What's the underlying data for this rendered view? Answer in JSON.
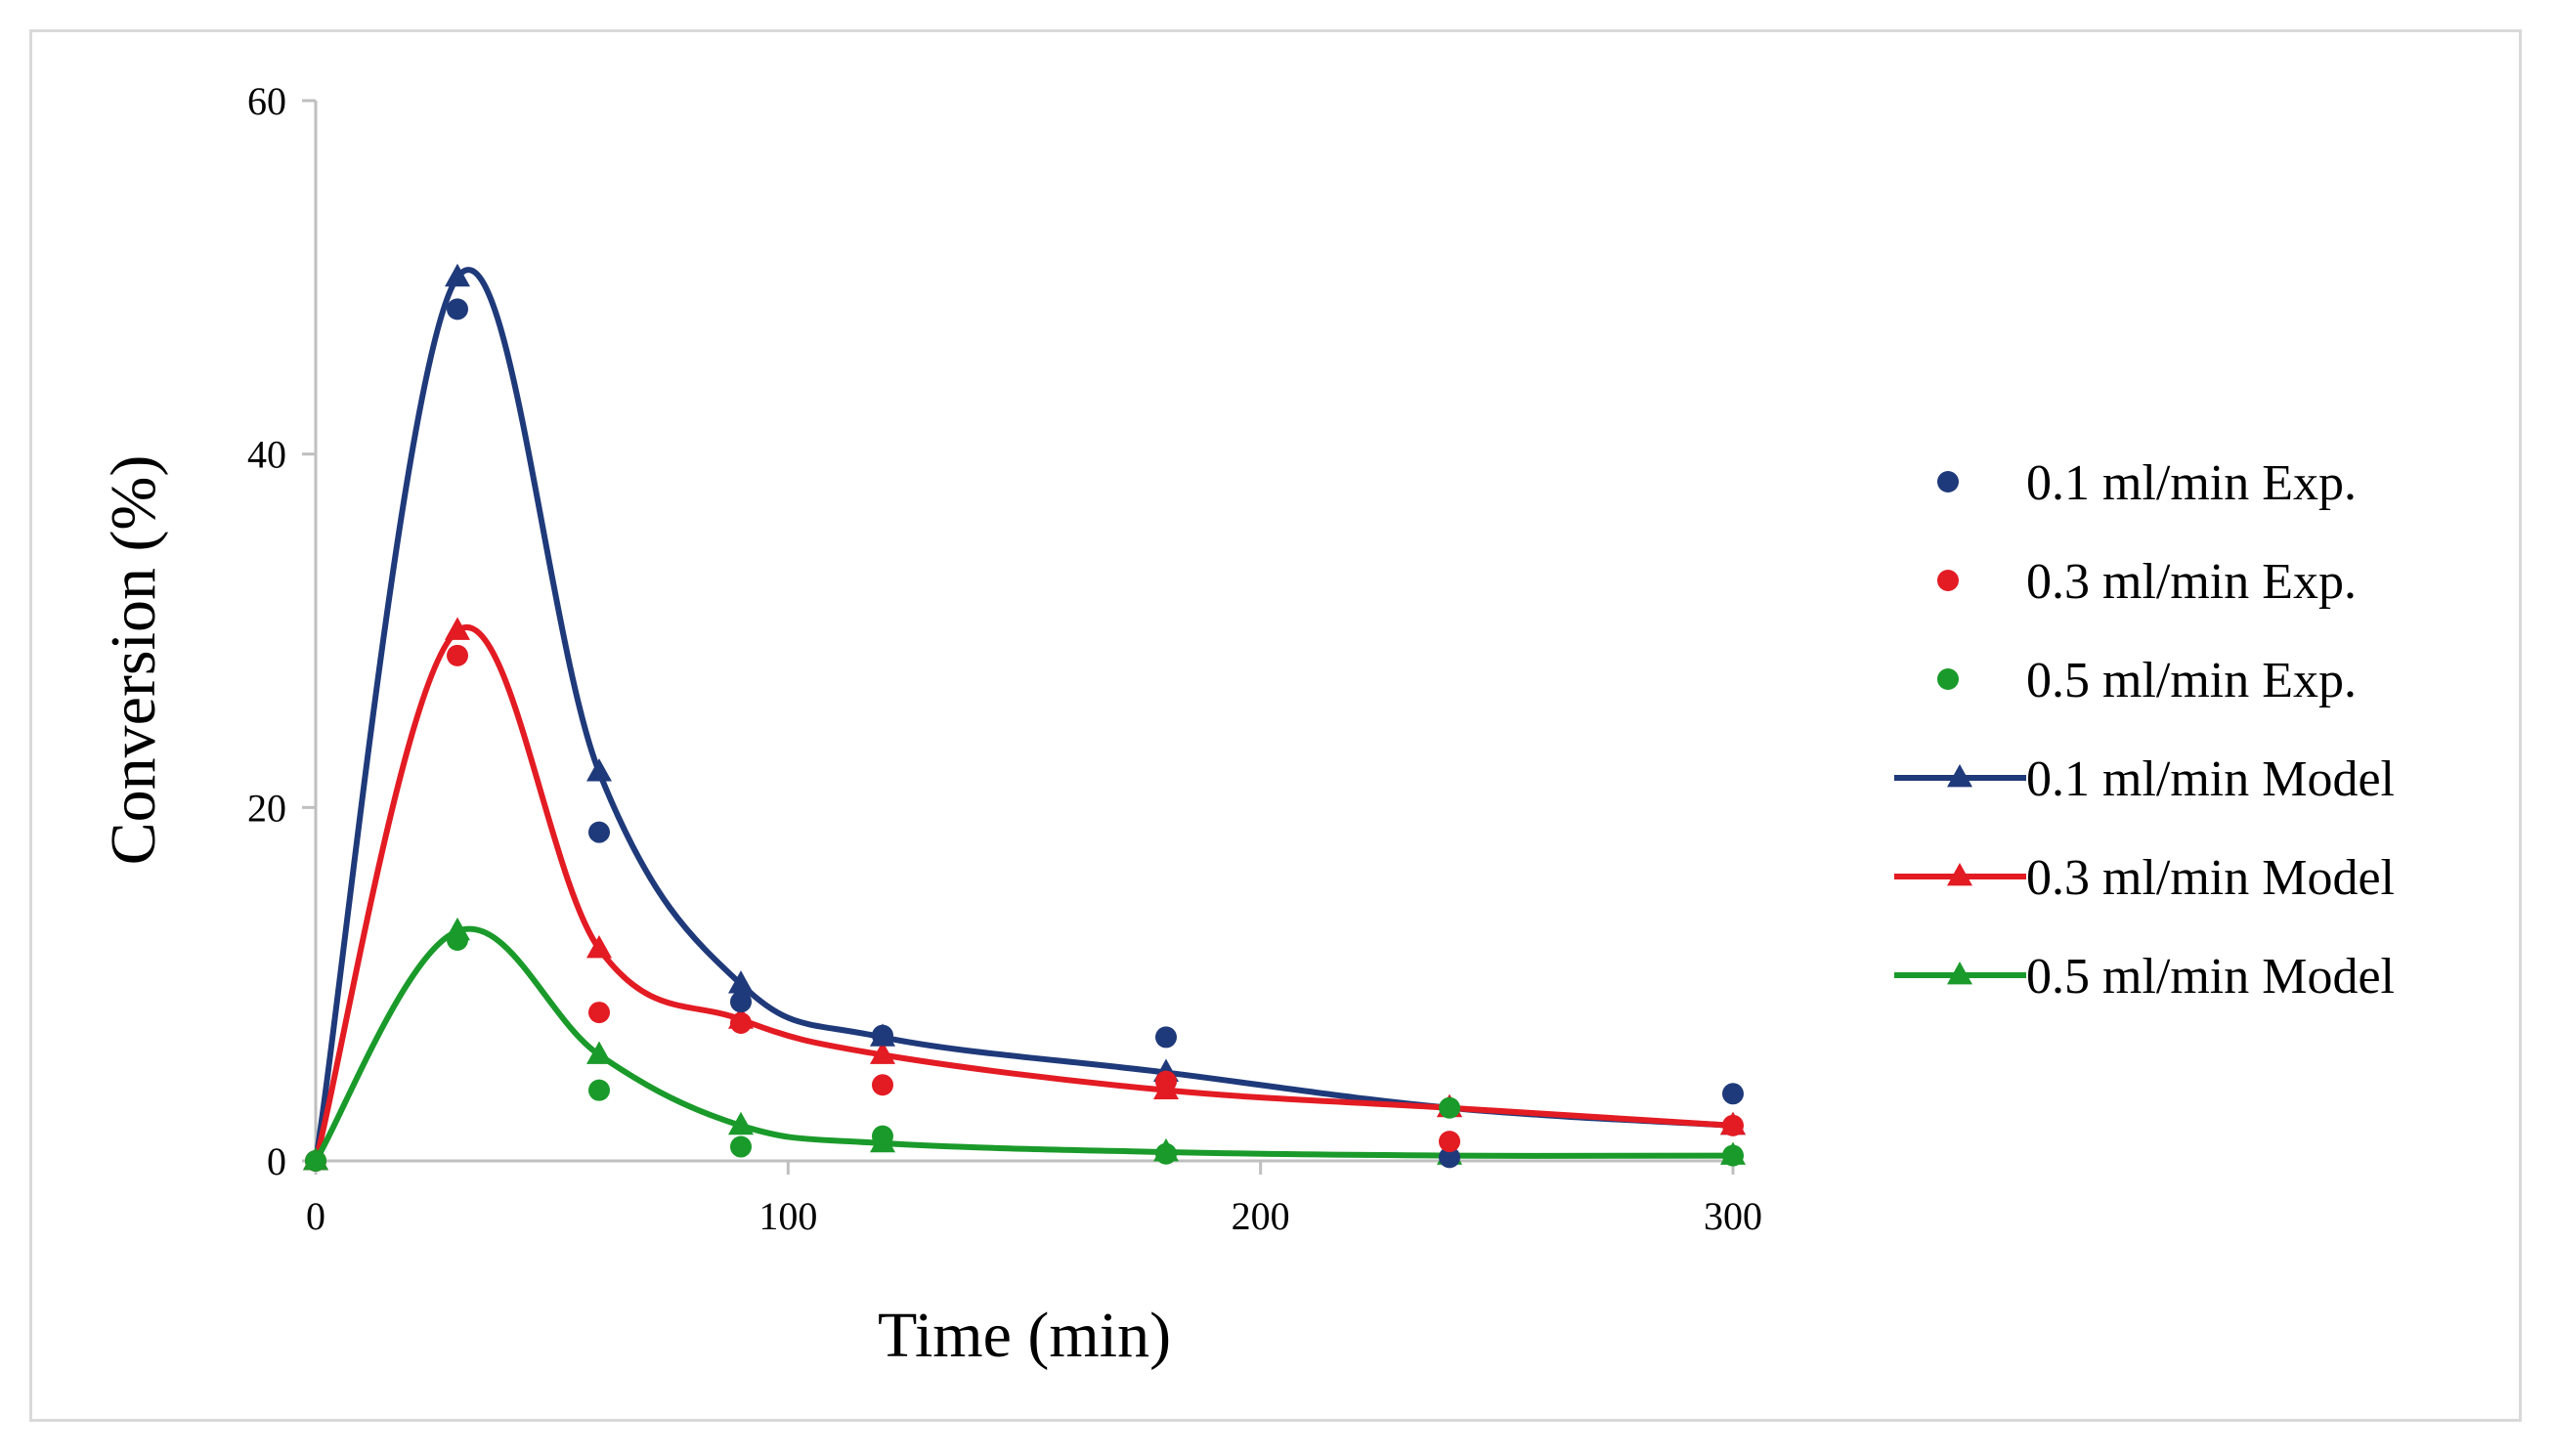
{
  "chart_data": {
    "type": "line",
    "title": "",
    "xlabel": "Time (min)",
    "ylabel": "Conversion (%)",
    "xlim": [
      0,
      300
    ],
    "ylim": [
      0,
      60
    ],
    "x_ticks": [
      0,
      100,
      200,
      300
    ],
    "y_ticks": [
      0,
      20,
      40,
      60
    ],
    "x_tick_labels": [
      "0",
      "100",
      "200",
      "300"
    ],
    "y_tick_labels": [
      "0",
      "20",
      "40",
      "60"
    ],
    "grid": false,
    "legend_position": "right",
    "series": [
      {
        "name": "0.1 ml/min Exp.",
        "kind": "scatter",
        "marker": "circle",
        "color": "#1f3a7a",
        "x": [
          0,
          30,
          60,
          90,
          120,
          180,
          240,
          300
        ],
        "y": [
          0,
          48.2,
          18.6,
          9.0,
          7.1,
          7.0,
          0.2,
          3.8
        ]
      },
      {
        "name": "0.3 ml/min Exp.",
        "kind": "scatter",
        "marker": "circle",
        "color": "#e31b23",
        "x": [
          0,
          30,
          60,
          90,
          120,
          180,
          240,
          300
        ],
        "y": [
          0,
          28.6,
          8.4,
          7.8,
          4.3,
          4.5,
          1.1,
          2.0
        ]
      },
      {
        "name": "0.5 ml/min Exp.",
        "kind": "scatter",
        "marker": "circle",
        "color": "#1a9a2a",
        "x": [
          0,
          30,
          60,
          90,
          120,
          180,
          240,
          300
        ],
        "y": [
          0,
          12.5,
          4.0,
          0.8,
          1.4,
          0.4,
          3.0,
          0.3
        ]
      },
      {
        "name": "0.1 ml/min Model",
        "kind": "line",
        "marker": "triangle",
        "color": "#1f3a7a",
        "x": [
          0,
          30,
          60,
          90,
          120,
          180,
          240,
          300
        ],
        "y": [
          0,
          50.0,
          22.0,
          10.0,
          7.0,
          5.0,
          3.0,
          2.0
        ]
      },
      {
        "name": "0.3 ml/min Model",
        "kind": "line",
        "marker": "triangle",
        "color": "#e31b23",
        "x": [
          0,
          30,
          60,
          90,
          120,
          180,
          240,
          300
        ],
        "y": [
          0,
          30.0,
          12.0,
          8.0,
          6.0,
          4.0,
          3.0,
          2.0
        ]
      },
      {
        "name": "0.5 ml/min Model",
        "kind": "line",
        "marker": "triangle",
        "color": "#1a9a2a",
        "x": [
          0,
          30,
          60,
          90,
          120,
          180,
          240,
          300
        ],
        "y": [
          0,
          13.0,
          6.0,
          2.0,
          1.0,
          0.5,
          0.3,
          0.3
        ]
      }
    ]
  }
}
